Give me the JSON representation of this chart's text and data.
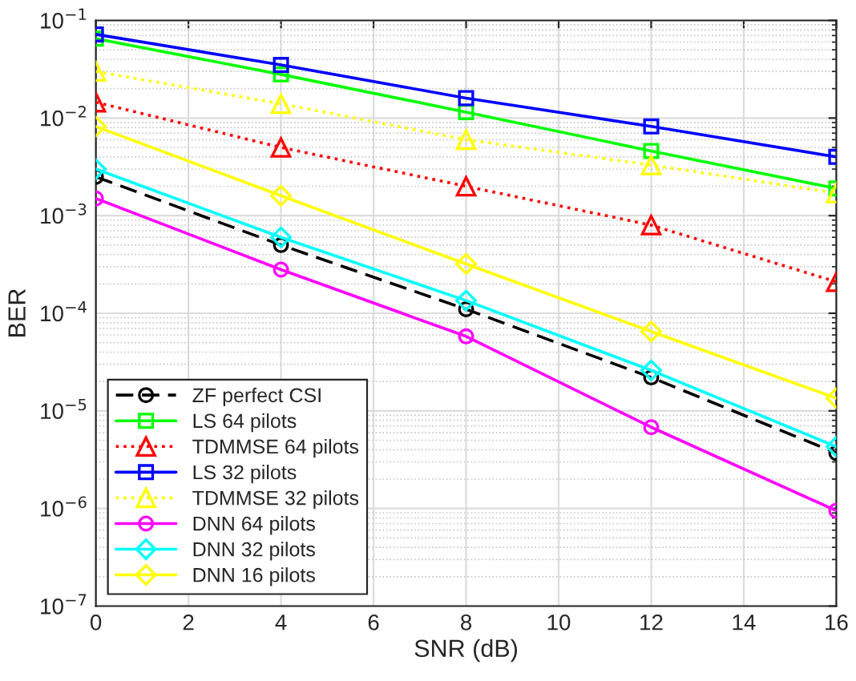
{
  "chart_data": {
    "type": "line",
    "xlabel": "SNR (dB)",
    "ylabel": "BER",
    "log": "y",
    "grid": true,
    "legend": "bottom left",
    "x": [
      0,
      4,
      8,
      12,
      16
    ],
    "xlim": [
      0,
      16
    ],
    "xticks": [
      0,
      2,
      4,
      6,
      8,
      10,
      12,
      14,
      16
    ],
    "ylim": [
      1e-07,
      0.1
    ],
    "yticks": [
      {
        "value": 1e-07,
        "label": "10$^{−7}$"
      },
      {
        "value": 1e-06,
        "label": "10$^{−6}$"
      },
      {
        "value": 1e-05,
        "label": "10$^{−5}$"
      },
      {
        "value": 0.0001,
        "label": "10$^{−4}$"
      },
      {
        "value": 0.001,
        "label": "10$^{−3}$"
      },
      {
        "value": 0.01,
        "label": "10$^{−2}$"
      },
      {
        "value": 0.1,
        "label": "10$^{−1}$"
      }
    ],
    "series": [
      {
        "name": "ZF perfect CSI",
        "color": "#000000",
        "marker": "circle",
        "line_style": "dashed",
        "values": [
          0.0025,
          0.0005,
          0.00011,
          2.2e-05,
          3.7e-06
        ]
      },
      {
        "name": "LS 64 pilots",
        "color": "#00ff00",
        "marker": "square",
        "line_style": "solid",
        "values": [
          0.065,
          0.028,
          0.0115,
          0.0046,
          0.0019
        ]
      },
      {
        "name": "TDMMSE 64 pilots",
        "color": "#ff0000",
        "marker": "triangle",
        "line_style": "dotted",
        "values": [
          0.0145,
          0.005,
          0.002,
          0.0008,
          0.00021
        ]
      },
      {
        "name": "LS 32 pilots",
        "color": "#0000ff",
        "marker": "square",
        "line_style": "solid",
        "values": [
          0.072,
          0.035,
          0.016,
          0.0082,
          0.004
        ]
      },
      {
        "name": "TDMMSE 32 pilots",
        "color": "#ffff00",
        "marker": "triangle",
        "line_style": "dotted",
        "values": [
          0.03,
          0.014,
          0.006,
          0.0033,
          0.0017
        ]
      },
      {
        "name": "DNN 64 pilots",
        "color": "#ff00ff",
        "marker": "circle",
        "line_style": "solid",
        "values": [
          0.0015,
          0.00028,
          5.8e-05,
          6.8e-06,
          9.5e-07
        ]
      },
      {
        "name": "DNN 32 pilots",
        "color": "#00ffff",
        "marker": "diamond",
        "line_style": "solid",
        "values": [
          0.003,
          0.0006,
          0.000135,
          2.6e-05,
          4.3e-06
        ]
      },
      {
        "name": "DNN 16 pilots",
        "color": "#ffff00",
        "marker": "diamond",
        "line_style": "solid",
        "values": [
          0.0082,
          0.0016,
          0.00032,
          6.5e-05,
          1.35e-05
        ]
      }
    ]
  }
}
